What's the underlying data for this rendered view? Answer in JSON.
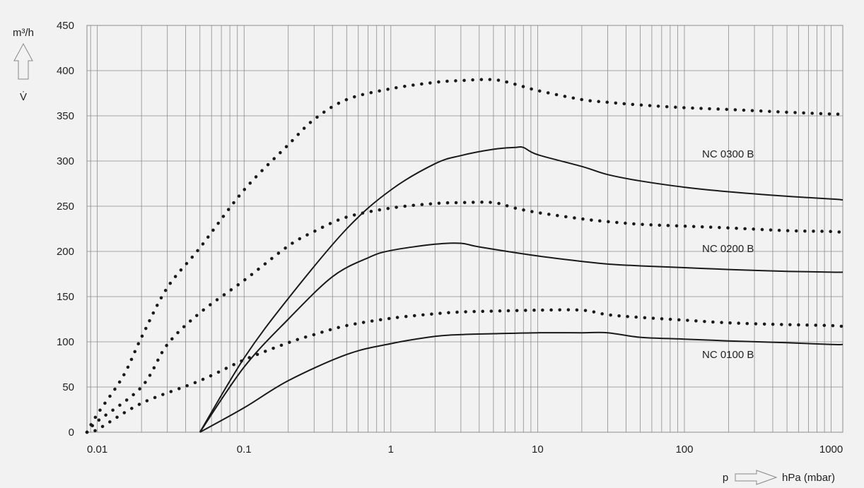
{
  "colors": {
    "background": "#f2f2f2",
    "grid": "#8c8c8c",
    "line": "#1a1a1a",
    "text": "#222222"
  },
  "chart_data": {
    "type": "line",
    "title": "",
    "xlabel": "p",
    "xunit": "hPa (mbar)",
    "ylabel_unit": "m³/h",
    "ylabel_symbol": "V̇",
    "x_scale": "log",
    "xlim": [
      0.0085,
      1200
    ],
    "ylim": [
      0,
      450
    ],
    "grid": true,
    "x_tick_values": [
      0.01,
      0.1,
      1,
      10,
      100,
      1000
    ],
    "x_tick_labels": [
      "0.01",
      "0.1",
      "1",
      "10",
      "100",
      "1000"
    ],
    "y_tick_values": [
      0,
      50,
      100,
      150,
      200,
      250,
      300,
      350,
      400,
      450
    ],
    "y_tick_labels": [
      "0",
      "50",
      "100",
      "150",
      "200",
      "250",
      "300",
      "350",
      "400",
      "450"
    ],
    "series": [
      {
        "name": "NC 0300 B",
        "style": "solid",
        "points": [
          [
            0.05,
            0
          ],
          [
            0.1,
            82
          ],
          [
            0.2,
            148
          ],
          [
            0.5,
            225
          ],
          [
            1,
            268
          ],
          [
            2,
            297
          ],
          [
            3,
            306
          ],
          [
            5,
            313
          ],
          [
            7,
            315
          ],
          [
            8,
            315
          ],
          [
            10,
            307
          ],
          [
            20,
            294
          ],
          [
            30,
            285
          ],
          [
            50,
            278
          ],
          [
            100,
            271
          ],
          [
            200,
            266
          ],
          [
            500,
            261
          ],
          [
            1000,
            258
          ],
          [
            1200,
            257
          ]
        ]
      },
      {
        "name": "",
        "style": "dotted",
        "points": [
          [
            0.0085,
            0
          ],
          [
            0.01,
            20
          ],
          [
            0.015,
            62
          ],
          [
            0.02,
            105
          ],
          [
            0.03,
            160
          ],
          [
            0.05,
            204
          ],
          [
            0.1,
            268
          ],
          [
            0.2,
            318
          ],
          [
            0.3,
            346
          ],
          [
            0.5,
            368
          ],
          [
            1,
            380
          ],
          [
            2,
            387
          ],
          [
            3,
            389
          ],
          [
            5,
            390
          ],
          [
            7,
            385
          ],
          [
            10,
            378
          ],
          [
            20,
            368
          ],
          [
            30,
            365
          ],
          [
            50,
            362
          ],
          [
            100,
            359
          ],
          [
            200,
            357
          ],
          [
            500,
            354
          ],
          [
            1000,
            352
          ],
          [
            1200,
            352
          ]
        ]
      },
      {
        "name": "NC 0200 B",
        "style": "solid",
        "points": [
          [
            0.05,
            0
          ],
          [
            0.1,
            72
          ],
          [
            0.2,
            125
          ],
          [
            0.4,
            172
          ],
          [
            0.7,
            193
          ],
          [
            1,
            201
          ],
          [
            2,
            208
          ],
          [
            3,
            209
          ],
          [
            4,
            205
          ],
          [
            10,
            195
          ],
          [
            20,
            189
          ],
          [
            30,
            186
          ],
          [
            50,
            184
          ],
          [
            100,
            182
          ],
          [
            200,
            180
          ],
          [
            500,
            178
          ],
          [
            1000,
            177
          ],
          [
            1200,
            177
          ]
        ]
      },
      {
        "name": "",
        "style": "dotted",
        "points": [
          [
            0.0085,
            0
          ],
          [
            0.01,
            12
          ],
          [
            0.02,
            50
          ],
          [
            0.03,
            97
          ],
          [
            0.05,
            132
          ],
          [
            0.1,
            168
          ],
          [
            0.2,
            206
          ],
          [
            0.3,
            222
          ],
          [
            0.5,
            238
          ],
          [
            1,
            248
          ],
          [
            2,
            253
          ],
          [
            3,
            254
          ],
          [
            5,
            254
          ],
          [
            7,
            248
          ],
          [
            10,
            243
          ],
          [
            20,
            236
          ],
          [
            30,
            233
          ],
          [
            50,
            230
          ],
          [
            100,
            228
          ],
          [
            200,
            226
          ],
          [
            500,
            223
          ],
          [
            1000,
            222
          ],
          [
            1200,
            221
          ]
        ]
      },
      {
        "name": "NC 0100 B",
        "style": "solid",
        "points": [
          [
            0.05,
            0
          ],
          [
            0.1,
            27
          ],
          [
            0.2,
            57
          ],
          [
            0.5,
            86
          ],
          [
            1,
            98
          ],
          [
            2,
            106
          ],
          [
            3,
            108
          ],
          [
            5,
            109
          ],
          [
            10,
            110
          ],
          [
            20,
            110
          ],
          [
            30,
            110
          ],
          [
            50,
            105
          ],
          [
            100,
            103
          ],
          [
            200,
            101
          ],
          [
            500,
            99
          ],
          [
            1000,
            97
          ],
          [
            1200,
            97
          ]
        ]
      },
      {
        "name": "",
        "style": "dotted",
        "points": [
          [
            0.0085,
            0
          ],
          [
            0.01,
            3
          ],
          [
            0.02,
            32
          ],
          [
            0.05,
            57
          ],
          [
            0.1,
            80
          ],
          [
            0.2,
            99
          ],
          [
            0.3,
            108
          ],
          [
            0.5,
            118
          ],
          [
            1,
            126
          ],
          [
            2,
            131
          ],
          [
            3,
            133
          ],
          [
            5,
            134
          ],
          [
            10,
            135
          ],
          [
            20,
            135
          ],
          [
            30,
            130
          ],
          [
            50,
            127
          ],
          [
            100,
            124
          ],
          [
            200,
            121
          ],
          [
            500,
            119
          ],
          [
            1000,
            118
          ],
          [
            1200,
            117
          ]
        ]
      }
    ]
  }
}
